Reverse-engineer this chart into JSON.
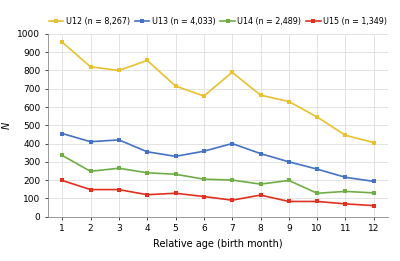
{
  "series": [
    {
      "label": "U12 (n = 8,267)",
      "color": "#E8C030",
      "marker": "s",
      "values": [
        955,
        820,
        800,
        855,
        715,
        660,
        790,
        665,
        630,
        545,
        445,
        405
      ]
    },
    {
      "label": "U13 (n = 4,033)",
      "color": "#4472C4",
      "marker": "s",
      "values": [
        455,
        410,
        420,
        355,
        330,
        358,
        400,
        345,
        300,
        260,
        215,
        193
      ]
    },
    {
      "label": "U14 (n = 2,489)",
      "color": "#70AD47",
      "marker": "s",
      "values": [
        335,
        248,
        265,
        240,
        232,
        205,
        200,
        178,
        198,
        128,
        138,
        130
      ]
    },
    {
      "label": "U15 (n = 1,349)",
      "color": "#E03020",
      "marker": "s",
      "values": [
        198,
        148,
        148,
        120,
        128,
        110,
        90,
        118,
        83,
        83,
        70,
        60
      ]
    }
  ],
  "x": [
    1,
    2,
    3,
    4,
    5,
    6,
    7,
    8,
    9,
    10,
    11,
    12
  ],
  "xlabel": "Relative age (birth month)",
  "ylabel": "N",
  "ylim": [
    0,
    1000
  ],
  "yticks": [
    0,
    100,
    200,
    300,
    400,
    500,
    600,
    700,
    800,
    900,
    1000
  ],
  "xticks": [
    1,
    2,
    3,
    4,
    5,
    6,
    7,
    8,
    9,
    10,
    11,
    12
  ],
  "grid_color": "#D8D8D8",
  "plot_bg_color": "#FFFFFF",
  "fig_bg_color": "#FFFFFF",
  "legend_ncol": 4,
  "marker_size": 3.5,
  "linewidth": 1.2,
  "xlabel_fontsize": 7,
  "ylabel_fontsize": 7,
  "tick_fontsize": 6.5,
  "legend_fontsize": 5.8
}
